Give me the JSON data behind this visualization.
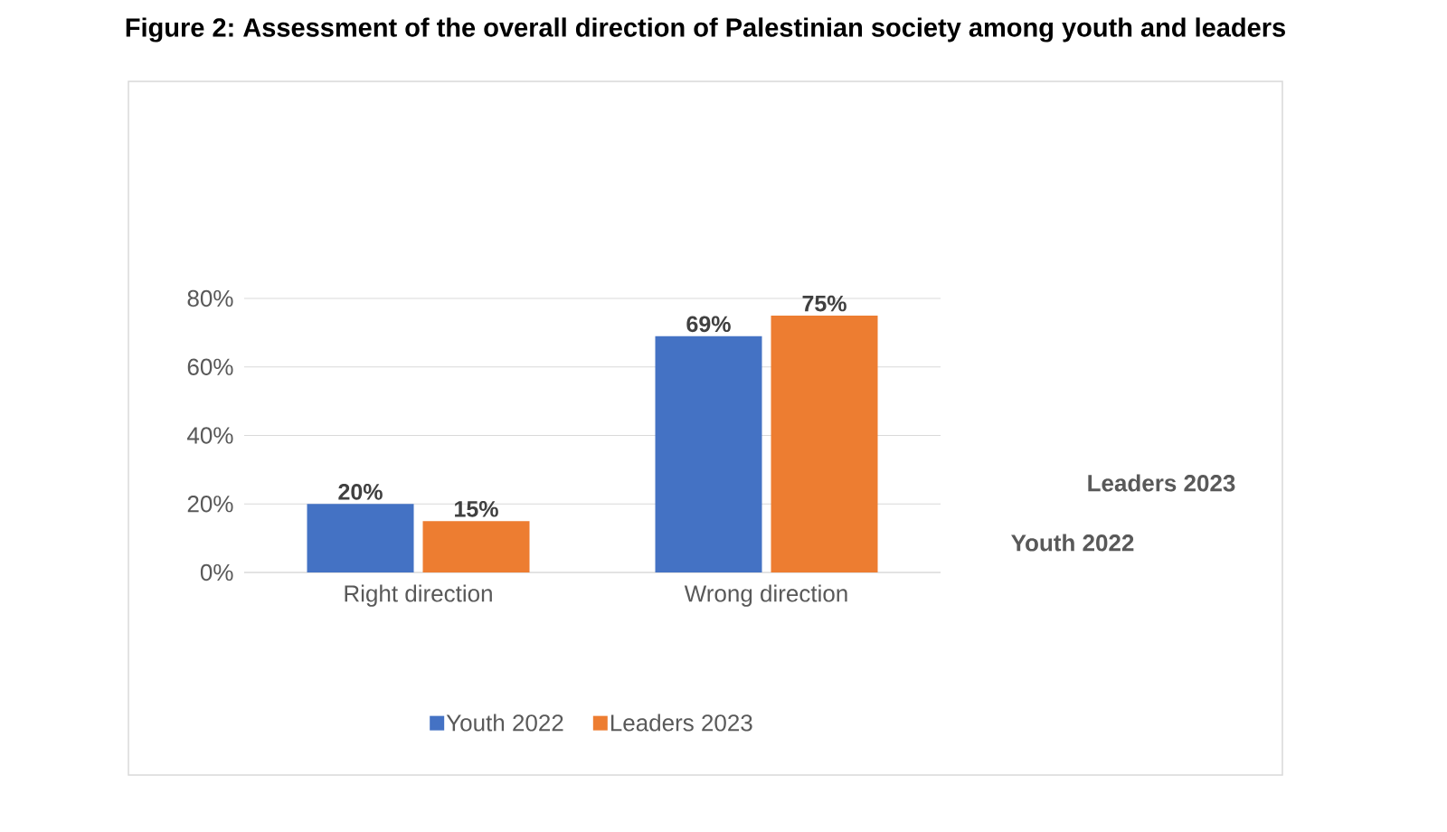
{
  "chart_data": {
    "type": "bar",
    "title": "Figure 2: Assessment of the overall direction of Palestinian society among youth and leaders",
    "categories": [
      "Right direction",
      "Wrong direction"
    ],
    "series": [
      {
        "name": "Youth 2022",
        "color": "#4472c4",
        "values": [
          20,
          69
        ],
        "value_labels": [
          "20%",
          "69%"
        ]
      },
      {
        "name": "Leaders 2023",
        "color": "#ed7d31",
        "values": [
          15,
          75
        ],
        "value_labels": [
          "15%",
          "75%"
        ]
      }
    ],
    "ylim": [
      0,
      80
    ],
    "yticks": [
      {
        "value": 0,
        "label": "0%"
      },
      {
        "value": 20,
        "label": "20%"
      },
      {
        "value": 40,
        "label": "40%"
      },
      {
        "value": 60,
        "label": "60%"
      },
      {
        "value": 80,
        "label": "80%"
      }
    ],
    "grid": "y",
    "legend": "bottom"
  }
}
